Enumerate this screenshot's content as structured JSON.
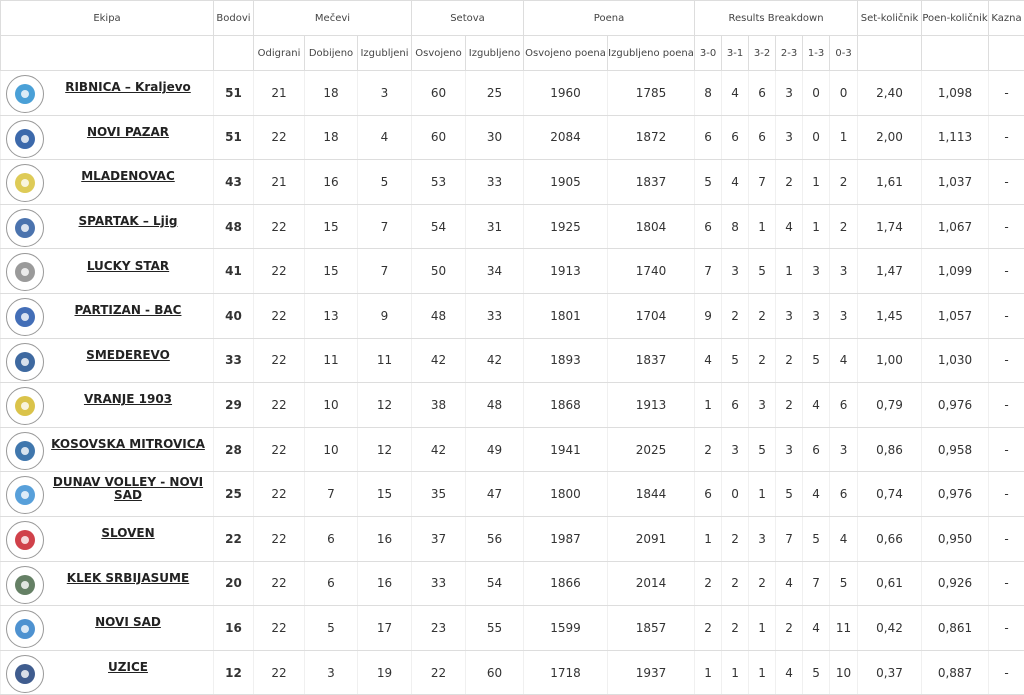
{
  "table": {
    "header_groups": [
      "Ekipa",
      "Bodovi",
      "Mečevi",
      "Setova",
      "Poena",
      "Results Breakdown",
      "Set-količnik",
      "Poen-količnik",
      "Kazna"
    ],
    "header_sub": [
      "Odigrani",
      "Dobijeno",
      "Izgubljeni",
      "Osvojeno",
      "Izgubljeno",
      "Osvojeno poena",
      "Izgubljeno poena",
      "3-0",
      "3-1",
      "3-2",
      "2-3",
      "1-3",
      "0-3"
    ],
    "rows": [
      [
        "RIBNICA – Kraljevo",
        51,
        21,
        18,
        3,
        60,
        25,
        1960,
        1785,
        8,
        4,
        6,
        3,
        0,
        0,
        "2,40",
        "1,098",
        "-"
      ],
      [
        "NOVI PAZAR",
        51,
        22,
        18,
        4,
        60,
        30,
        2084,
        1872,
        6,
        6,
        6,
        3,
        0,
        1,
        "2,00",
        "1,113",
        "-"
      ],
      [
        "MLADENOVAC",
        43,
        21,
        16,
        5,
        53,
        33,
        1905,
        1837,
        5,
        4,
        7,
        2,
        1,
        2,
        "1,61",
        "1,037",
        "-"
      ],
      [
        "SPARTAK – Ljig",
        48,
        22,
        15,
        7,
        54,
        31,
        1925,
        1804,
        6,
        8,
        1,
        4,
        1,
        2,
        "1,74",
        "1,067",
        "-"
      ],
      [
        "LUCKY STAR",
        41,
        22,
        15,
        7,
        50,
        34,
        1913,
        1740,
        7,
        3,
        5,
        1,
        3,
        3,
        "1,47",
        "1,099",
        "-"
      ],
      [
        "PARTIZAN - BAC",
        40,
        22,
        13,
        9,
        48,
        33,
        1801,
        1704,
        9,
        2,
        2,
        3,
        3,
        3,
        "1,45",
        "1,057",
        "-"
      ],
      [
        "SMEDEREVO",
        33,
        22,
        11,
        11,
        42,
        42,
        1893,
        1837,
        4,
        5,
        2,
        2,
        5,
        4,
        "1,00",
        "1,030",
        "-"
      ],
      [
        "VRANJE 1903",
        29,
        22,
        10,
        12,
        38,
        48,
        1868,
        1913,
        1,
        6,
        3,
        2,
        4,
        6,
        "0,79",
        "0,976",
        "-"
      ],
      [
        "KOSOVSKA MITROVICA",
        28,
        22,
        10,
        12,
        42,
        49,
        1941,
        2025,
        2,
        3,
        5,
        3,
        6,
        3,
        "0,86",
        "0,958",
        "-"
      ],
      [
        "DUNAV VOLLEY - NOVI SAD",
        25,
        22,
        7,
        15,
        35,
        47,
        1800,
        1844,
        6,
        0,
        1,
        5,
        4,
        6,
        "0,74",
        "0,976",
        "-"
      ],
      [
        "SLOVEN",
        22,
        22,
        6,
        16,
        37,
        56,
        1987,
        2091,
        1,
        2,
        3,
        7,
        5,
        4,
        "0,66",
        "0,950",
        "-"
      ],
      [
        "KLEK SRBIJASUME",
        20,
        22,
        6,
        16,
        33,
        54,
        1866,
        2014,
        2,
        2,
        2,
        4,
        7,
        5,
        "0,61",
        "0,926",
        "-"
      ],
      [
        "NOVI SAD",
        16,
        22,
        5,
        17,
        23,
        55,
        1599,
        1857,
        2,
        2,
        1,
        2,
        4,
        11,
        "0,42",
        "0,861",
        "-"
      ],
      [
        "UZICE",
        12,
        22,
        3,
        19,
        22,
        60,
        1718,
        1937,
        1,
        1,
        1,
        4,
        5,
        10,
        "0,37",
        "0,887",
        "-"
      ]
    ]
  }
}
